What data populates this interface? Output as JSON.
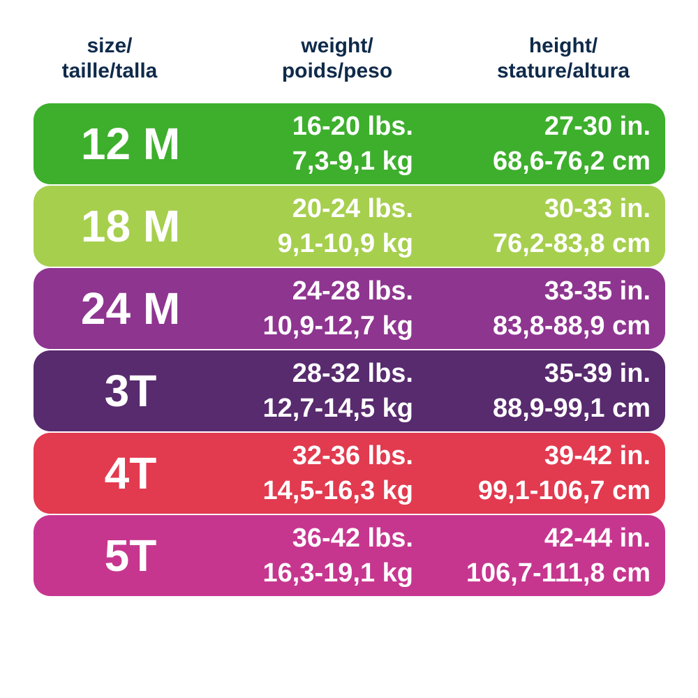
{
  "header": {
    "size": [
      "size/",
      "taille/talla"
    ],
    "weight": [
      "weight/",
      "poids/peso"
    ],
    "height": [
      "height/",
      "stature/altura"
    ]
  },
  "table": {
    "rows": [
      {
        "size": "12 M",
        "weight": [
          "16-20 lbs.",
          "7,3-9,1 kg"
        ],
        "height": [
          "27-30 in.",
          "68,6-76,2 cm"
        ]
      },
      {
        "size": "18 M",
        "weight": [
          "20-24 lbs.",
          "9,1-10,9 kg"
        ],
        "height": [
          "30-33 in.",
          "76,2-83,8 cm"
        ]
      },
      {
        "size": "24 M",
        "weight": [
          "24-28 lbs.",
          "10,9-12,7 kg"
        ],
        "height": [
          "33-35 in.",
          "83,8-88,9 cm"
        ]
      },
      {
        "size": "3T",
        "weight": [
          "28-32 lbs.",
          "12,7-14,5 kg"
        ],
        "height": [
          "35-39 in.",
          "88,9-99,1 cm"
        ]
      },
      {
        "size": "4T",
        "weight": [
          "32-36 lbs.",
          "14,5-16,3 kg"
        ],
        "height": [
          "39-42 in.",
          "99,1-106,7 cm"
        ]
      },
      {
        "size": "5T",
        "weight": [
          "36-42 lbs.",
          "16,3-19,1 kg"
        ],
        "height": [
          "42-44 in.",
          "106,7-111,8 cm"
        ]
      }
    ]
  }
}
